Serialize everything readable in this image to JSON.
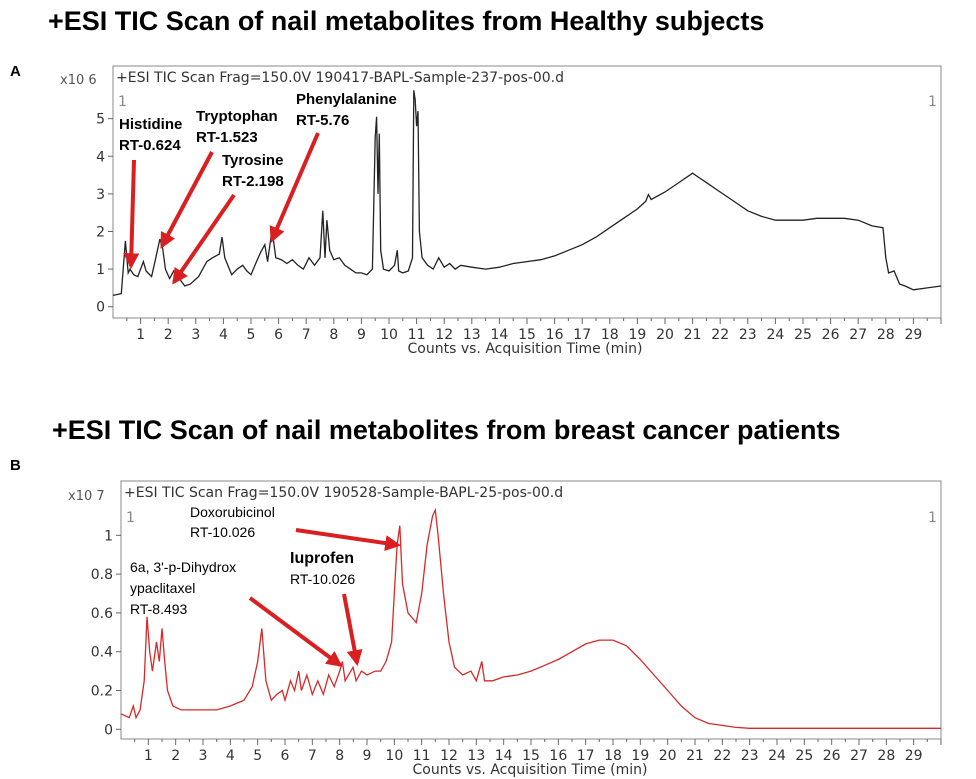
{
  "chart_data": [
    {
      "type": "line",
      "panel_letter": "A",
      "title": "+ESI TIC Scan of nail metabolites from Healthy subjects",
      "header": "+ESI TIC Scan Frag=150.0V 190417-BAPL-Sample-237-pos-00.d",
      "corner_left": "1",
      "corner_right": "1",
      "y_multiplier": "x10 6",
      "xlabel": "Counts vs. Acquisition Time (min)",
      "ylabel": "",
      "xlim": [
        0,
        30
      ],
      "ylim": [
        -0.3,
        6.4
      ],
      "x_ticks": [
        1,
        2,
        3,
        4,
        5,
        6,
        7,
        8,
        9,
        10,
        11,
        12,
        13,
        14,
        15,
        16,
        17,
        18,
        19,
        20,
        21,
        22,
        23,
        24,
        25,
        26,
        27,
        28,
        29
      ],
      "y_ticks": [
        0,
        1,
        2,
        3,
        4,
        5
      ],
      "line_color": "#222222",
      "series": [
        {
          "name": "TIC",
          "points": [
            [
              0,
              0.3
            ],
            [
              0.3,
              0.35
            ],
            [
              0.45,
              1.75
            ],
            [
              0.55,
              0.9
            ],
            [
              0.62,
              1.0
            ],
            [
              0.75,
              0.85
            ],
            [
              0.9,
              0.8
            ],
            [
              1.1,
              1.2
            ],
            [
              1.2,
              0.95
            ],
            [
              1.4,
              0.8
            ],
            [
              1.55,
              1.3
            ],
            [
              1.7,
              1.8
            ],
            [
              1.8,
              1.55
            ],
            [
              1.9,
              1.0
            ],
            [
              2.05,
              0.75
            ],
            [
              2.2,
              0.95
            ],
            [
              2.4,
              0.75
            ],
            [
              2.6,
              0.55
            ],
            [
              2.8,
              0.6
            ],
            [
              3.1,
              0.8
            ],
            [
              3.4,
              1.2
            ],
            [
              3.6,
              1.3
            ],
            [
              3.85,
              1.4
            ],
            [
              3.95,
              1.85
            ],
            [
              4.05,
              1.3
            ],
            [
              4.3,
              0.85
            ],
            [
              4.5,
              1.0
            ],
            [
              4.7,
              1.1
            ],
            [
              4.85,
              0.95
            ],
            [
              5.0,
              0.85
            ],
            [
              5.2,
              1.2
            ],
            [
              5.35,
              1.45
            ],
            [
              5.5,
              1.65
            ],
            [
              5.6,
              1.2
            ],
            [
              5.76,
              2.05
            ],
            [
              5.9,
              1.3
            ],
            [
              6.1,
              1.25
            ],
            [
              6.3,
              1.15
            ],
            [
              6.5,
              1.25
            ],
            [
              6.7,
              1.1
            ],
            [
              6.9,
              1.0
            ],
            [
              7.1,
              1.3
            ],
            [
              7.3,
              1.1
            ],
            [
              7.5,
              1.3
            ],
            [
              7.6,
              2.55
            ],
            [
              7.68,
              1.3
            ],
            [
              7.75,
              2.3
            ],
            [
              7.85,
              1.5
            ],
            [
              8.0,
              1.25
            ],
            [
              8.2,
              1.3
            ],
            [
              8.4,
              1.1
            ],
            [
              8.6,
              1.0
            ],
            [
              8.8,
              0.9
            ],
            [
              9.0,
              0.9
            ],
            [
              9.2,
              0.85
            ],
            [
              9.4,
              1.0
            ],
            [
              9.5,
              4.5
            ],
            [
              9.55,
              5.05
            ],
            [
              9.6,
              3.0
            ],
            [
              9.65,
              4.6
            ],
            [
              9.7,
              1.5
            ],
            [
              9.8,
              1.0
            ],
            [
              10.0,
              0.95
            ],
            [
              10.2,
              1.1
            ],
            [
              10.3,
              1.5
            ],
            [
              10.35,
              0.95
            ],
            [
              10.5,
              0.9
            ],
            [
              10.7,
              0.95
            ],
            [
              10.85,
              1.3
            ],
            [
              10.9,
              5.75
            ],
            [
              10.95,
              5.5
            ],
            [
              11.0,
              4.8
            ],
            [
              11.05,
              5.2
            ],
            [
              11.1,
              2.0
            ],
            [
              11.2,
              1.3
            ],
            [
              11.4,
              1.1
            ],
            [
              11.6,
              1.0
            ],
            [
              11.8,
              1.3
            ],
            [
              12.0,
              1.05
            ],
            [
              12.2,
              1.15
            ],
            [
              12.4,
              1.0
            ],
            [
              12.6,
              1.1
            ],
            [
              13.0,
              1.05
            ],
            [
              13.5,
              1.0
            ],
            [
              14.0,
              1.05
            ],
            [
              14.5,
              1.15
            ],
            [
              15.0,
              1.2
            ],
            [
              15.5,
              1.25
            ],
            [
              16.0,
              1.35
            ],
            [
              16.5,
              1.5
            ],
            [
              17.0,
              1.65
            ],
            [
              17.5,
              1.85
            ],
            [
              18.0,
              2.1
            ],
            [
              18.5,
              2.35
            ],
            [
              19.0,
              2.6
            ],
            [
              19.3,
              2.8
            ],
            [
              19.4,
              2.98
            ],
            [
              19.5,
              2.85
            ],
            [
              20.0,
              3.05
            ],
            [
              20.5,
              3.3
            ],
            [
              21.0,
              3.55
            ],
            [
              21.2,
              3.45
            ],
            [
              21.5,
              3.3
            ],
            [
              22.0,
              3.05
            ],
            [
              22.5,
              2.8
            ],
            [
              23.0,
              2.55
            ],
            [
              23.5,
              2.4
            ],
            [
              24.0,
              2.3
            ],
            [
              24.5,
              2.3
            ],
            [
              25.0,
              2.3
            ],
            [
              25.5,
              2.35
            ],
            [
              26.0,
              2.35
            ],
            [
              26.5,
              2.35
            ],
            [
              27.0,
              2.3
            ],
            [
              27.5,
              2.15
            ],
            [
              27.9,
              2.1
            ],
            [
              28.0,
              1.3
            ],
            [
              28.1,
              0.9
            ],
            [
              28.3,
              0.95
            ],
            [
              28.5,
              0.6
            ],
            [
              28.7,
              0.55
            ],
            [
              29.0,
              0.45
            ],
            [
              29.5,
              0.5
            ],
            [
              30.0,
              0.55
            ]
          ]
        }
      ],
      "annotations": [
        {
          "lines": [
            "Histidine",
            "RT-0.624"
          ],
          "target_x": 0.8,
          "target_y": 1.0
        },
        {
          "lines": [
            "Tryptophan",
            "RT-1.523"
          ],
          "target_x": 1.7,
          "target_y": 1.85
        },
        {
          "lines": [
            "Tyrosine",
            "RT-2.198"
          ],
          "target_x": 2.15,
          "target_y": 0.7
        },
        {
          "lines": [
            "Phenylalanine",
            "RT-5.76"
          ],
          "target_x": 5.7,
          "target_y": 2.0
        }
      ]
    },
    {
      "type": "line",
      "panel_letter": "B",
      "title": "+ESI TIC Scan of nail metabolites from breast cancer patients",
      "header": "+ESI TIC Scan Frag=150.0V 190528-Sample-BAPL-25-pos-00.d",
      "corner_left": "1",
      "corner_right": "1",
      "y_multiplier": "x10 7",
      "xlabel": "Counts vs. Acquisition Time (min)",
      "ylabel": "",
      "xlim": [
        0,
        30
      ],
      "ylim": [
        -0.05,
        1.28
      ],
      "x_ticks": [
        1,
        2,
        3,
        4,
        5,
        6,
        7,
        8,
        9,
        10,
        11,
        12,
        13,
        14,
        15,
        16,
        17,
        18,
        19,
        20,
        21,
        22,
        23,
        24,
        25,
        26,
        27,
        28,
        29
      ],
      "y_ticks": [
        0,
        0.2,
        0.4,
        0.6,
        0.8,
        1
      ],
      "y_tick_labels": [
        "0",
        "0.2",
        "0.4",
        "0.6",
        "0.8",
        "1"
      ],
      "line_color": "#d42a2a",
      "series": [
        {
          "name": "TIC",
          "points": [
            [
              0,
              0.08
            ],
            [
              0.3,
              0.06
            ],
            [
              0.45,
              0.12
            ],
            [
              0.55,
              0.06
            ],
            [
              0.7,
              0.1
            ],
            [
              0.85,
              0.25
            ],
            [
              0.95,
              0.58
            ],
            [
              1.05,
              0.4
            ],
            [
              1.15,
              0.3
            ],
            [
              1.3,
              0.45
            ],
            [
              1.4,
              0.35
            ],
            [
              1.5,
              0.52
            ],
            [
              1.6,
              0.35
            ],
            [
              1.7,
              0.2
            ],
            [
              1.9,
              0.12
            ],
            [
              2.2,
              0.1
            ],
            [
              2.6,
              0.1
            ],
            [
              3.0,
              0.1
            ],
            [
              3.5,
              0.1
            ],
            [
              4.0,
              0.12
            ],
            [
              4.5,
              0.15
            ],
            [
              4.8,
              0.22
            ],
            [
              5.0,
              0.35
            ],
            [
              5.15,
              0.52
            ],
            [
              5.3,
              0.25
            ],
            [
              5.5,
              0.15
            ],
            [
              5.7,
              0.18
            ],
            [
              5.9,
              0.2
            ],
            [
              6.0,
              0.15
            ],
            [
              6.2,
              0.25
            ],
            [
              6.35,
              0.2
            ],
            [
              6.5,
              0.3
            ],
            [
              6.6,
              0.2
            ],
            [
              6.8,
              0.28
            ],
            [
              7.0,
              0.18
            ],
            [
              7.2,
              0.25
            ],
            [
              7.4,
              0.18
            ],
            [
              7.6,
              0.28
            ],
            [
              7.8,
              0.22
            ],
            [
              8.0,
              0.3
            ],
            [
              8.1,
              0.35
            ],
            [
              8.2,
              0.25
            ],
            [
              8.49,
              0.32
            ],
            [
              8.6,
              0.25
            ],
            [
              8.8,
              0.3
            ],
            [
              9.0,
              0.28
            ],
            [
              9.3,
              0.3
            ],
            [
              9.5,
              0.3
            ],
            [
              9.7,
              0.35
            ],
            [
              9.9,
              0.45
            ],
            [
              10.0,
              0.7
            ],
            [
              10.1,
              0.95
            ],
            [
              10.2,
              1.05
            ],
            [
              10.3,
              0.75
            ],
            [
              10.5,
              0.6
            ],
            [
              10.8,
              0.55
            ],
            [
              11.0,
              0.7
            ],
            [
              11.2,
              0.95
            ],
            [
              11.4,
              1.1
            ],
            [
              11.5,
              1.13
            ],
            [
              11.6,
              1.0
            ],
            [
              11.8,
              0.7
            ],
            [
              12.0,
              0.45
            ],
            [
              12.2,
              0.32
            ],
            [
              12.5,
              0.28
            ],
            [
              12.8,
              0.3
            ],
            [
              13.0,
              0.25
            ],
            [
              13.2,
              0.35
            ],
            [
              13.3,
              0.25
            ],
            [
              13.6,
              0.25
            ],
            [
              14.0,
              0.27
            ],
            [
              14.5,
              0.28
            ],
            [
              15.0,
              0.3
            ],
            [
              15.5,
              0.33
            ],
            [
              16.0,
              0.36
            ],
            [
              16.5,
              0.4
            ],
            [
              17.0,
              0.44
            ],
            [
              17.5,
              0.46
            ],
            [
              18.0,
              0.46
            ],
            [
              18.5,
              0.43
            ],
            [
              19.0,
              0.36
            ],
            [
              19.5,
              0.28
            ],
            [
              20.0,
              0.2
            ],
            [
              20.5,
              0.12
            ],
            [
              21.0,
              0.06
            ],
            [
              21.5,
              0.03
            ],
            [
              22.0,
              0.02
            ],
            [
              22.5,
              0.01
            ],
            [
              23.0,
              0.005
            ],
            [
              24.0,
              0.005
            ],
            [
              26.0,
              0.005
            ],
            [
              28.0,
              0.005
            ],
            [
              30.0,
              0.005
            ]
          ]
        }
      ],
      "annotations": [
        {
          "lines": [
            "Doxorubicinol",
            "RT-10.026"
          ],
          "target_x": 10.2,
          "target_y": 0.98
        },
        {
          "lines": [
            "Iuprofen",
            "RT-10.026"
          ],
          "target_x": 8.6,
          "target_y": 0.28
        },
        {
          "lines": [
            "6a, 3'-p-Dihydrox",
            "ypaclitaxel",
            "RT-8.493"
          ],
          "target_x": 8.0,
          "target_y": 0.3
        }
      ]
    }
  ]
}
